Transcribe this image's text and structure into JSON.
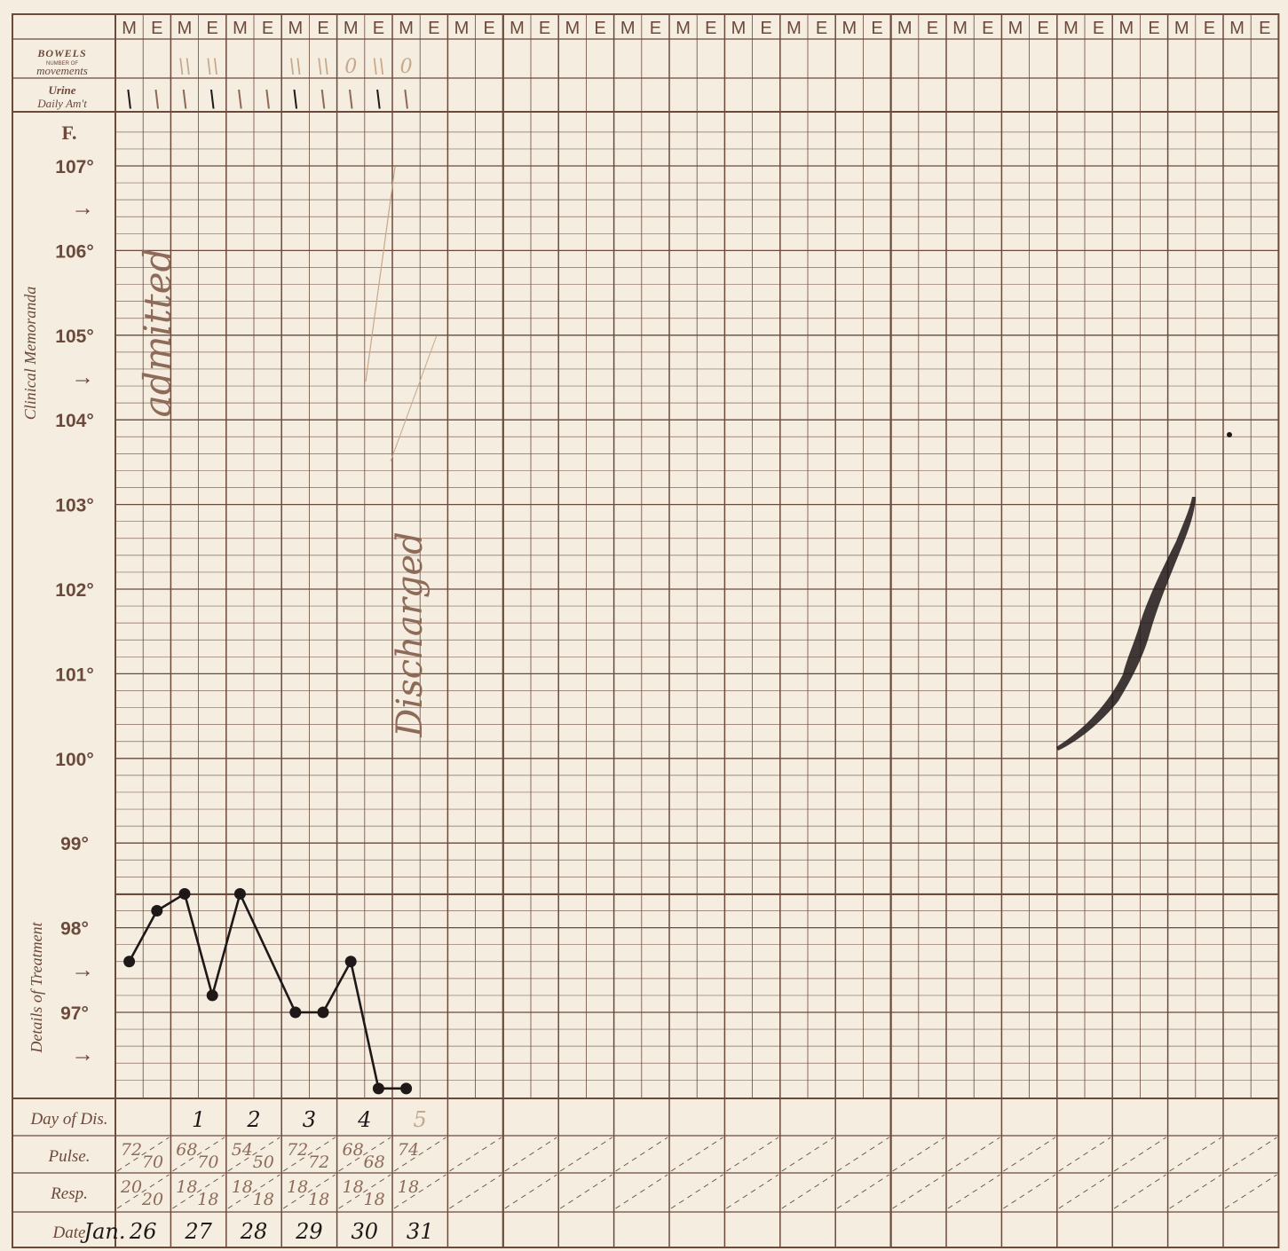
{
  "form": {
    "shift_labels": [
      "M",
      "E"
    ],
    "bowels_title": "BOWELS",
    "bowels_sub1": "NUMBER OF",
    "bowels_sub2": "movements",
    "urine_title": "Urine",
    "urine_sub": "Daily Am't",
    "unit_label": "F.",
    "temp_labels": [
      "107°",
      "106°",
      "105°",
      "104°",
      "103°",
      "102°",
      "101°",
      "100°",
      "99°",
      "98°",
      "97°"
    ],
    "arrow_glyph": "→",
    "clinical_memoranda": "Clinical Memoranda",
    "details_of_treatment": "Details of Treatment",
    "row_day": "Day of Dis.",
    "row_pulse": "Pulse.",
    "row_resp": "Resp.",
    "row_date": "Date"
  },
  "handwritten": {
    "admitted": "admitted",
    "discharged": "Discharged",
    "month": "Jan.",
    "days_of_disease": [
      "",
      "1",
      "2",
      "3",
      "4",
      "5"
    ],
    "dates": [
      "26",
      "27",
      "28",
      "29",
      "30",
      "31"
    ],
    "pulse": [
      [
        "72",
        "70"
      ],
      [
        "68",
        "70"
      ],
      [
        "54",
        "50"
      ],
      [
        "72",
        "72"
      ],
      [
        "68",
        "68"
      ],
      [
        "74",
        ""
      ]
    ],
    "resp": [
      [
        "20",
        "20"
      ],
      [
        "18",
        "18"
      ],
      [
        "18",
        "18"
      ],
      [
        "18",
        "18"
      ],
      [
        "18",
        "18"
      ],
      [
        "18",
        ""
      ]
    ],
    "bowels_marks": [
      "",
      "",
      "\\\\",
      "\\\\",
      "",
      "",
      "\\\\",
      "\\\\",
      "0",
      "\\\\",
      "0",
      ""
    ],
    "urine_marks": [
      "\\",
      "\\",
      "\\",
      "\\",
      "\\",
      "\\",
      "\\",
      "\\",
      "\\",
      "\\",
      "\\",
      ""
    ]
  },
  "chart_data": {
    "type": "line",
    "ylabel": "F.",
    "ylim": [
      96,
      107.5
    ],
    "series": [
      {
        "values": [
          {
            "col": 0,
            "temp": 97.6
          },
          {
            "col": 1,
            "temp": 98.2
          },
          {
            "col": 2,
            "temp": 98.4
          },
          {
            "col": 3,
            "temp": 97.2
          },
          {
            "col": 4,
            "temp": 98.4
          },
          {
            "col": 6,
            "temp": 97.0
          },
          {
            "col": 7,
            "temp": 97.0
          },
          {
            "col": 8,
            "temp": 97.6
          },
          {
            "col": 9,
            "temp": 96.1
          },
          {
            "col": 10,
            "temp": 96.1
          }
        ]
      }
    ]
  },
  "colors": {
    "paper": "#f4ede0",
    "rule": "#6b4a3c",
    "ink_black": "#1e1818",
    "ink_sepia": "#8e6a58",
    "ink_pencil": "#c8a888"
  }
}
